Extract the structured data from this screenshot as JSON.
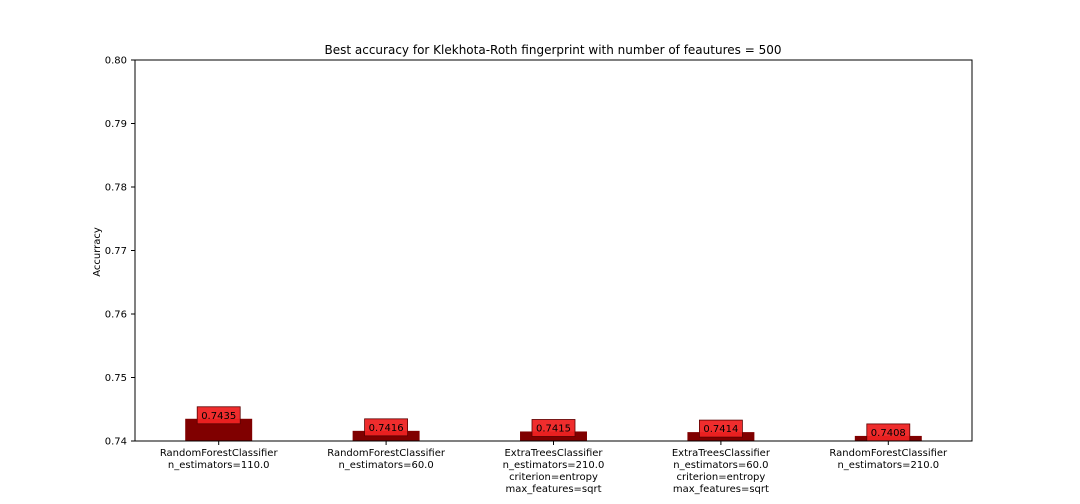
{
  "chart_data": {
    "type": "bar",
    "title": "Best accuracy for Klekhota-Roth fingerprint with number of feautures = 500",
    "xlabel": "",
    "ylabel": "Accurracy",
    "ylim": [
      0.74,
      0.8
    ],
    "yticks": [
      "0.74",
      "0.75",
      "0.76",
      "0.77",
      "0.78",
      "0.79",
      "0.80"
    ],
    "grid": false,
    "bar_color": "#800000",
    "label_box_color": "#ee2222",
    "categories": [
      [
        "RandomForestClassifier",
        "n_estimators=110.0"
      ],
      [
        "RandomForestClassifier",
        "n_estimators=60.0"
      ],
      [
        "ExtraTreesClassifier",
        "n_estimators=210.0",
        "criterion=entropy",
        "max_features=sqrt"
      ],
      [
        "ExtraTreesClassifier",
        "n_estimators=60.0",
        "criterion=entropy",
        "max_features=sqrt"
      ],
      [
        "RandomForestClassifier",
        "n_estimators=210.0"
      ]
    ],
    "values": [
      0.7435,
      0.7416,
      0.7415,
      0.7414,
      0.7408
    ],
    "data_labels": [
      "0.7435",
      "0.7416",
      "0.7415",
      "0.7414",
      "0.7408"
    ]
  }
}
